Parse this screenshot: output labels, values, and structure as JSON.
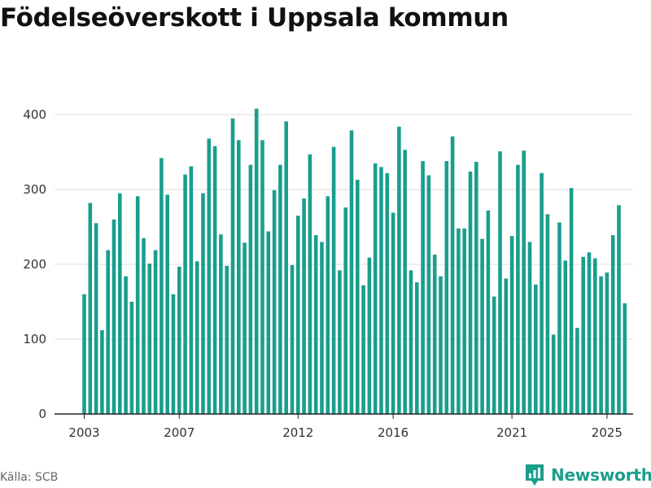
{
  "title": "Födelseöverskott i Uppsala kommun",
  "source": "Källa: SCB",
  "brand": {
    "name": "Newsworthy",
    "icon": "newsworthy-logo-icon"
  },
  "colors": {
    "bar": "#1a9e8c",
    "grid": "#dddddd",
    "axis": "#222222",
    "text": "#333333"
  },
  "chart_data": {
    "type": "bar",
    "title": "Födelseöverskott i Uppsala kommun",
    "xlabel": "",
    "ylabel": "",
    "ylim": [
      0,
      430
    ],
    "yticks": [
      0,
      100,
      200,
      300,
      400
    ],
    "x_ticks": [
      {
        "label": "2003",
        "index": 0
      },
      {
        "label": "2007",
        "index": 16
      },
      {
        "label": "2012",
        "index": 36
      },
      {
        "label": "2016",
        "index": 52
      },
      {
        "label": "2021",
        "index": 72
      },
      {
        "label": "2025",
        "index": 88
      }
    ],
    "grid": true,
    "frequency": "quarterly",
    "values": [
      160,
      282,
      255,
      112,
      219,
      260,
      295,
      184,
      150,
      291,
      235,
      201,
      219,
      342,
      293,
      160,
      197,
      320,
      331,
      204,
      295,
      368,
      358,
      240,
      198,
      395,
      366,
      229,
      333,
      408,
      366,
      244,
      299,
      333,
      391,
      199,
      265,
      288,
      347,
      239,
      230,
      291,
      357,
      192,
      276,
      379,
      313,
      172,
      209,
      335,
      330,
      322,
      269,
      384,
      353,
      192,
      176,
      338,
      319,
      213,
      184,
      338,
      371,
      248,
      248,
      324,
      337,
      234,
      272,
      157,
      351,
      181,
      238,
      333,
      352,
      230,
      173,
      322,
      267,
      106,
      256,
      205,
      302,
      115,
      210,
      216,
      208,
      184,
      189,
      239,
      279,
      148
    ]
  }
}
